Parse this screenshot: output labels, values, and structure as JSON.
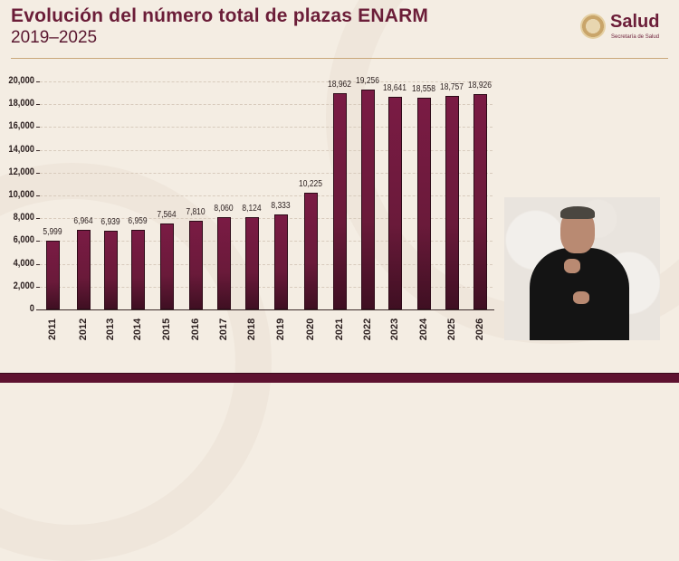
{
  "header": {
    "title": "Evolución del número total de plazas ENARM",
    "subtitle": "2019–2025"
  },
  "logo": {
    "icon": "national-seal-icon",
    "name": "Salud",
    "subtitle": "Secretaría de Salud"
  },
  "colors": {
    "brand": "#6b1d38",
    "bar": "#6a1a3a",
    "background": "#f4ede3",
    "footer": "#5e1230",
    "rule": "#c9a77a"
  },
  "interpreter_video": {
    "description": "Sign language interpreter inset"
  },
  "chart_data": {
    "type": "bar",
    "title": "Evolución del número total de plazas ENARM",
    "subtitle": "2019–2025",
    "xlabel": "",
    "ylabel": "",
    "ylim": [
      0,
      20000
    ],
    "yticks": [
      "0",
      "2,000",
      "4,000",
      "6,000",
      "8,000",
      "10,000",
      "12,000",
      "14,000",
      "16,000",
      "18,000",
      "20,000"
    ],
    "grid": true,
    "legend": null,
    "categories": [
      "2011",
      "2012",
      "2013",
      "2014",
      "2015",
      "2016",
      "2017",
      "2018",
      "2019",
      "2020",
      "2021",
      "2022",
      "2023",
      "2024",
      "2025",
      "2026"
    ],
    "values": [
      5999,
      6964,
      6939,
      6959,
      7564,
      7810,
      8060,
      8124,
      8333,
      10225,
      18962,
      19256,
      18641,
      18558,
      18757,
      18926
    ],
    "labels": [
      "5,999",
      "6,964",
      "6,939",
      "6,959",
      "7,564",
      "7,810",
      "8,060",
      "8,124",
      "8,333",
      "10,225",
      "18,962",
      "19,256",
      "18,641",
      "18,558",
      "18,757",
      "18,926"
    ]
  }
}
